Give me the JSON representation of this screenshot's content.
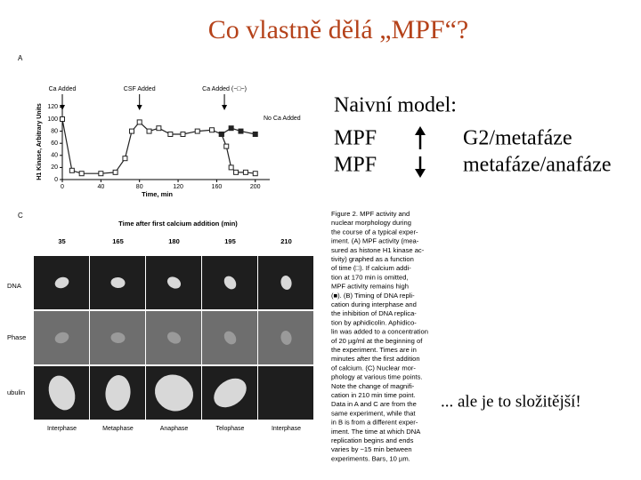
{
  "title": "Co vlastně dělá „MPF“?",
  "chart_data": {
    "type": "line",
    "panel": "A",
    "ylabel": "H1 Kinase, Arbitrary Units",
    "xlabel": "Time, min",
    "xlim": [
      0,
      215
    ],
    "ylim": [
      0,
      125
    ],
    "xticks": [
      0,
      40,
      80,
      120,
      160,
      200
    ],
    "yticks": [
      0,
      20,
      40,
      60,
      80,
      100,
      120
    ],
    "annotations": [
      {
        "text": "Ca Added",
        "x": 0
      },
      {
        "text": "CSF Added",
        "x": 80
      },
      {
        "text": "Ca Added (−□−)",
        "x": 168
      }
    ],
    "series": [
      {
        "color": "#222222",
        "marker": "square-open",
        "x": [
          0,
          10,
          20,
          40,
          55,
          65,
          72,
          80,
          90,
          100,
          112,
          125,
          140,
          155,
          165,
          170,
          175,
          180,
          190,
          200
        ],
        "values": [
          100,
          15,
          10,
          10,
          12,
          35,
          80,
          95,
          80,
          85,
          75,
          75,
          80,
          82,
          75,
          55,
          20,
          12,
          12,
          10
        ]
      },
      {
        "name": "No Ca Added",
        "color": "#222222",
        "marker": "square-filled",
        "x": [
          165,
          175,
          185,
          200
        ],
        "values": [
          75,
          85,
          80,
          75
        ]
      }
    ]
  },
  "panel_c": {
    "label": "C",
    "header": "Time after first calcium addition (min)",
    "times": [
      "35",
      "165",
      "180",
      "195",
      "210"
    ],
    "rows": [
      "DNA",
      "Phase",
      "ubulin"
    ],
    "phases": [
      "Interphase",
      "Metaphase",
      "Anaphase",
      "Telophase",
      "Interphase"
    ]
  },
  "caption": [
    "Figure 2. MPF activity and",
    "nuclear morphology during",
    "the course of a typical exper-",
    "iment. (A) MPF activity (mea-",
    "sured as histone H1 kinase ac-",
    "tivity) graphed as a function",
    "of time (□). If calcium addi-",
    "tion at 170 min is omitted,",
    "MPF activity remains high",
    "(■). (B) Timing of DNA repli-",
    "cation during interphase and",
    "the inhibition of DNA replica-",
    "tion by aphidicolin. Aphidico-",
    "lin was added to a concentration",
    "of 20 µg/ml at the beginning of",
    "the experiment. Times are in",
    "minutes after the first addition",
    "of calcium. (C) Nuclear mor-",
    "phology at various time points.",
    "Note the change of magnifi-",
    "cation in 210 min time point.",
    "Data in A and C are from the",
    "same experiment, while that",
    "in B is from a different exper-",
    "iment. The time at which DNA",
    "replication begins and ends",
    "varies by ~15 min between",
    "experiments. Bars, 10 µm."
  ],
  "model": {
    "heading": "Naivní model:",
    "rows": [
      [
        "MPF",
        "G2/metafáze"
      ],
      [
        "MPF",
        "metafáze/anafáze"
      ]
    ]
  },
  "note": "... ale je to složitější!"
}
